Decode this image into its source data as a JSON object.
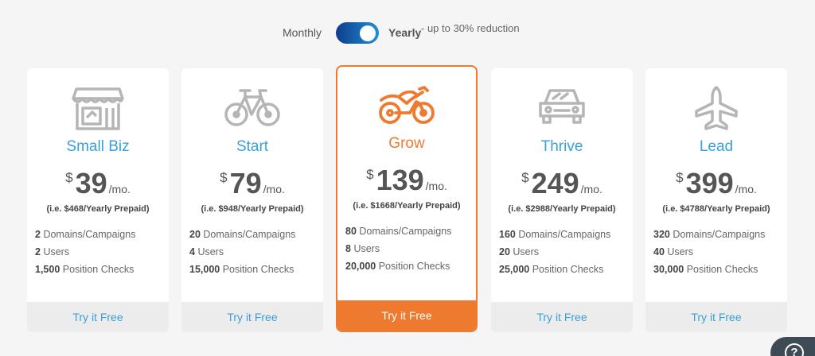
{
  "billing_toggle": {
    "monthly_label": "Monthly",
    "yearly_label": "Yearly",
    "reduction_label": "- up to 30% reduction",
    "selected": "Yearly",
    "accent_color": "#1e8fd6"
  },
  "plans": [
    {
      "name": "Small Biz",
      "icon": "store-icon",
      "currency": "$",
      "price": "39",
      "period": "/mo.",
      "prepaid": "(i.e. $468/Yearly Prepaid)",
      "features": [
        {
          "value": "2",
          "label": "Domains/Campaigns"
        },
        {
          "value": "2",
          "label": "Users"
        },
        {
          "value": "1,500",
          "label": "Position Checks"
        }
      ],
      "cta": "Try it Free"
    },
    {
      "name": "Start",
      "icon": "bicycle-icon",
      "currency": "$",
      "price": "79",
      "period": "/mo.",
      "prepaid": "(i.e. $948/Yearly Prepaid)",
      "features": [
        {
          "value": "20",
          "label": "Domains/Campaigns"
        },
        {
          "value": "4",
          "label": "Users"
        },
        {
          "value": "15,000",
          "label": "Position Checks"
        }
      ],
      "cta": "Try it Free"
    },
    {
      "name": "Grow",
      "icon": "motorcycle-icon",
      "currency": "$",
      "price": "139",
      "period": "/mo.",
      "prepaid": "(i.e. $1668/Yearly Prepaid)",
      "features": [
        {
          "value": "80",
          "label": "Domains/Campaigns"
        },
        {
          "value": "8",
          "label": "Users"
        },
        {
          "value": "20,000",
          "label": "Position Checks"
        }
      ],
      "cta": "Try it Free",
      "highlighted": true
    },
    {
      "name": "Thrive",
      "icon": "car-icon",
      "currency": "$",
      "price": "249",
      "period": "/mo.",
      "prepaid": "(i.e. $2988/Yearly Prepaid)",
      "features": [
        {
          "value": "160",
          "label": "Domains/Campaigns"
        },
        {
          "value": "20",
          "label": "Users"
        },
        {
          "value": "25,000",
          "label": "Position Checks"
        }
      ],
      "cta": "Try it Free"
    },
    {
      "name": "Lead",
      "icon": "airplane-icon",
      "currency": "$",
      "price": "399",
      "period": "/mo.",
      "prepaid": "(i.e. $4788/Yearly Prepaid)",
      "features": [
        {
          "value": "320",
          "label": "Domains/Campaigns"
        },
        {
          "value": "40",
          "label": "Users"
        },
        {
          "value": "30,000",
          "label": "Position Checks"
        }
      ],
      "cta": "Try it Free"
    }
  ],
  "colors": {
    "plan_name": "#3aa0d8",
    "highlight": "#ee7a2f",
    "cta_bg": "#ececec"
  },
  "help_button": {
    "icon": "help-icon",
    "label": "?"
  }
}
